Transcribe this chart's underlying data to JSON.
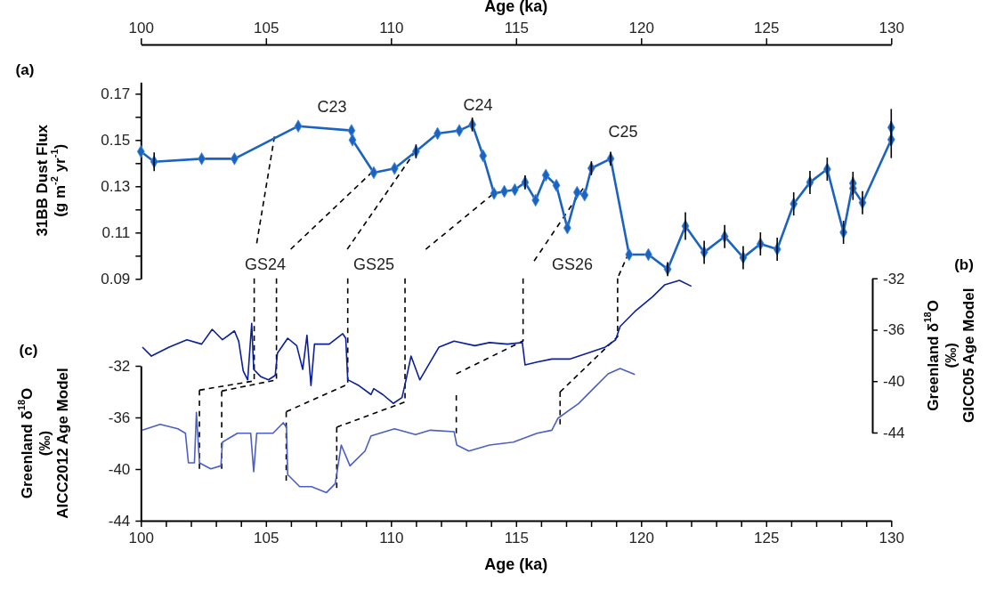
{
  "chart_data": [
    {
      "type": "line",
      "xlabel": "Age (ka)",
      "ylabel": "31BB Dust Flux\n(g m$^{-2}$ yr$^{-1}$)",
      "xlim": [
        100,
        130
      ],
      "xticks": [
        100,
        105,
        110,
        115,
        120,
        125,
        130
      ],
      "ylim": [
        0.09,
        0.175
      ],
      "yticks": [
        0.09,
        {
          "value": 0.1,
          "label": null
        },
        0.11,
        {
          "value": 0.12,
          "label": null
        },
        0.13,
        {
          "value": 0.14,
          "label": null
        },
        0.15,
        {
          "value": 0.16,
          "label": null
        },
        0.17
      ],
      "marker": "none",
      "line_style": "solid",
      "series": [
        {
          "color": "#1b63c1",
          "marker": "diamond",
          "x": [
            100,
            100.53,
            102.43,
            103.74,
            106.29,
            108.42,
            108.46,
            109.31,
            110.14,
            111.0,
            111.86,
            112.73,
            113.25,
            113.68,
            114.12,
            114.53,
            114.95,
            115.36,
            115.78,
            116.19,
            116.61,
            117.05,
            117.44,
            117.74,
            118.01,
            118.78,
            119.52,
            120.29,
            121.06,
            121.77,
            122.52,
            123.34,
            124.08,
            124.77,
            125.44,
            126.1,
            126.75,
            127.44,
            128.09,
            128.47,
            128.47,
            128.85,
            130,
            130
          ],
          "values": [
            0.145,
            0.1406,
            0.1419,
            0.1419,
            0.156,
            0.1541,
            0.15,
            0.1359,
            0.1377,
            0.1451,
            0.1528,
            0.1541,
            0.1567,
            0.1432,
            0.1269,
            0.1278,
            0.1285,
            0.1317,
            0.124,
            0.1348,
            0.1304,
            0.112,
            0.1274,
            0.1262,
            0.1378,
            0.1419,
            0.1005,
            0.1005,
            0.0942,
            0.1128,
            0.1015,
            0.1083,
            0.0992,
            0.1051,
            0.1028,
            0.1224,
            0.1317,
            0.1374,
            0.1101,
            0.1313,
            0.1291,
            0.1229,
            0.1502,
            0.1554
          ],
          "errors": [
            null,
            0.004,
            null,
            null,
            null,
            null,
            null,
            null,
            null,
            0.003,
            null,
            null,
            0.003,
            null,
            null,
            null,
            null,
            0.003,
            null,
            null,
            null,
            null,
            null,
            null,
            0.003,
            0.003,
            null,
            null,
            0.003,
            0.006,
            0.005,
            0.005,
            0.005,
            0.005,
            0.005,
            0.005,
            0.005,
            0.005,
            0.005,
            0.005,
            0.005,
            0.005,
            0.008,
            0.008
          ]
        },
        {
          "color": "#000000",
          "line_style": "dashed",
          "x": [
            105.34,
            104.63
          ],
          "values": [
            0.1515,
            0.1054
          ]
        },
        {
          "color": "#000000",
          "line_style": "dashed",
          "x": [
            109.25,
            105.99
          ],
          "values": [
            0.1362,
            0.1028
          ]
        },
        {
          "color": "#000000",
          "line_style": "dashed",
          "x": [
            110.97,
            108.25
          ],
          "values": [
            0.1451,
            0.1028
          ]
        },
        {
          "color": "#000000",
          "line_style": "dashed",
          "x": [
            114.06,
            111.39
          ],
          "values": [
            0.1265,
            0.1028
          ]
        },
        {
          "color": "#000000",
          "line_style": "dashed",
          "x": [
            117.68,
            115.72
          ],
          "values": [
            0.1291,
            0.0977
          ]
        },
        {
          "color": "#000000",
          "line_style": "dashed",
          "x": [
            119.49,
            119.1
          ],
          "values": [
            0.1009,
            0.0913
          ]
        }
      ],
      "annotations": [
        "C23",
        "C24",
        "C25",
        "GS24",
        "GS25",
        "GS26",
        "(a)"
      ]
    },
    {
      "type": "line",
      "xlabel": "Age (ka)",
      "ylabel": "Greenland δ$^{18}$O\n(‰)\nAICC2012 Age Model",
      "y2label": "Greenland δ$^{18}$O\n(‰)\nGICC05 Age Model",
      "xlim": [
        100,
        130
      ],
      "xticks": [
        100,
        {
          "value": 101,
          "label": null
        },
        {
          "value": 102,
          "label": null
        },
        {
          "value": 103,
          "label": null
        },
        {
          "value": 104,
          "label": null
        },
        105,
        {
          "value": 106,
          "label": null
        },
        {
          "value": 107,
          "label": null
        },
        {
          "value": 108,
          "label": null
        },
        {
          "value": 109,
          "label": null
        },
        110,
        {
          "value": 111,
          "label": null
        },
        {
          "value": 112,
          "label": null
        },
        {
          "value": 113,
          "label": null
        },
        {
          "value": 114,
          "label": null
        },
        115,
        {
          "value": 116,
          "label": null
        },
        {
          "value": 117,
          "label": null
        },
        {
          "value": 118,
          "label": null
        },
        {
          "value": 119,
          "label": null
        },
        120,
        {
          "value": 121,
          "label": null
        },
        {
          "value": 122,
          "label": null
        },
        {
          "value": 123,
          "label": null
        },
        {
          "value": 124,
          "label": null
        },
        125,
        {
          "value": 126,
          "label": null
        },
        {
          "value": 127,
          "label": null
        },
        {
          "value": 128,
          "label": null
        },
        {
          "value": 129,
          "label": null
        },
        130
      ],
      "ylim": [
        -44,
        -32
      ],
      "yticks": [
        -44,
        -40,
        -36,
        -32
      ],
      "y2lim": [
        -44,
        -32
      ],
      "y2ticks": [
        -44,
        -40,
        -36,
        -32
      ],
      "marker": "none",
      "line_style": "solid",
      "series": [
        {
          "color": "#0b1f9c",
          "axis": "y2",
          "x": [
            100.06,
            100.42,
            101.13,
            101.84,
            102.43,
            102.85,
            103.26,
            103.74,
            103.91,
            104.09,
            104.27,
            104.43,
            104.51,
            104.8,
            105.1,
            105.37,
            105.46,
            105.87,
            106.23,
            106.47,
            106.64,
            106.8,
            106.94,
            107.53,
            108.07,
            108.19,
            108.27,
            108.72,
            109.2,
            109.31,
            109.67,
            110.09,
            110.44,
            110.6,
            110.8,
            111.15,
            111.57,
            111.92,
            112.52,
            113.35,
            113.94,
            114.65,
            115.25,
            115.36,
            115.84,
            116.43,
            117.14,
            117.86,
            118.57,
            118.98,
            119.16,
            119.75,
            120.46,
            120.94,
            121.53,
            122.01
          ],
          "values": [
            -37.35,
            -38.05,
            -37.35,
            -36.78,
            -37.12,
            -35.97,
            -36.78,
            -36.09,
            -36.89,
            -39.2,
            -39.9,
            -35.5,
            -39.08,
            -39.66,
            -39.9,
            -39.55,
            -37.82,
            -36.66,
            -37.24,
            -39.08,
            -36.43,
            -40.35,
            -37.12,
            -37.12,
            -36.31,
            -36.66,
            -39.89,
            -40.35,
            -41.04,
            -40.58,
            -41.04,
            -41.73,
            -41.27,
            -39.9,
            -38.05,
            -39.9,
            -38.51,
            -37.35,
            -36.89,
            -37.24,
            -37.0,
            -37.12,
            -37.0,
            -38.74,
            -38.51,
            -38.28,
            -38.28,
            -37.82,
            -37.35,
            -36.78,
            -35.74,
            -34.58,
            -33.43,
            -32.51,
            -32.16,
            -32.62
          ]
        },
        {
          "color": "#4b5fc6",
          "x": [
            100.06,
            100.77,
            101.48,
            101.78,
            101.9,
            102.14,
            102.22,
            102.34,
            102.79,
            103.2,
            103.26,
            103.86,
            104.39,
            104.51,
            104.63,
            105.28,
            105.69,
            105.82,
            105.87,
            106.35,
            106.82,
            107.42,
            107.77,
            108.01,
            108.36,
            108.96,
            109.2,
            110.14,
            110.98,
            111.57,
            112.52,
            112.63,
            113.11,
            113.94,
            114.89,
            115.84,
            116.43,
            116.67,
            117.5,
            118.09,
            118.68,
            119.16,
            119.75
          ],
          "values": [
            -36.99,
            -36.53,
            -36.88,
            -37.22,
            -39.52,
            -39.52,
            -35.61,
            -39.52,
            -39.98,
            -39.75,
            -37.91,
            -37.22,
            -37.22,
            -40.21,
            -37.22,
            -37.22,
            -36.41,
            -36.76,
            -40.43,
            -41.36,
            -41.36,
            -41.82,
            -41.13,
            -38.14,
            -39.75,
            -38.6,
            -37.43,
            -36.88,
            -37.33,
            -36.99,
            -37.1,
            -38.14,
            -38.6,
            -38.14,
            -37.91,
            -37.22,
            -36.99,
            -36.07,
            -34.92,
            -33.77,
            -32.62,
            -32.21,
            -32.67
          ]
        },
        {
          "color": "#000000",
          "line_style": "dashed",
          "axis": "y2",
          "x": [
            104.53,
            104.53,
            102.34
          ],
          "values": [
            -32,
            -39.98,
            -40.7
          ]
        },
        {
          "color": "#000000",
          "line_style": "dashed",
          "axis": "y2",
          "x": [
            105.42,
            105.42,
            103.23
          ],
          "values": [
            -32,
            -39.9,
            -40.77
          ]
        },
        {
          "color": "#000000",
          "line_style": "dashed",
          "axis": "y2",
          "x": [
            108.27,
            108.27,
            105.81
          ],
          "values": [
            -32,
            -40.24,
            -42.38
          ]
        },
        {
          "color": "#000000",
          "line_style": "dashed",
          "axis": "y2",
          "x": [
            110.56,
            110.56,
            107.83
          ],
          "values": [
            -32,
            -41.62,
            -43.58
          ]
        },
        {
          "color": "#000000",
          "line_style": "dashed",
          "axis": "y2",
          "x": [
            115.28,
            115.28,
            112.61
          ],
          "values": [
            -32,
            -36.87,
            -39.43
          ]
        },
        {
          "color": "#000000",
          "line_style": "dashed",
          "axis": "y2",
          "x": [
            119.06,
            119.06,
            116.76
          ],
          "values": [
            -32,
            -36.54,
            -40.84
          ]
        },
        {
          "color": "#000000",
          "line_style": "dashed",
          "x": [
            102.34,
            102.34
          ],
          "values": [
            -33.88,
            -39.98
          ]
        },
        {
          "color": "#000000",
          "line_style": "dashed",
          "x": [
            103.23,
            103.23
          ],
          "values": [
            -33.97,
            -39.98
          ]
        },
        {
          "color": "#000000",
          "line_style": "dashed",
          "x": [
            105.81,
            105.81
          ],
          "values": [
            -35.57,
            -40.9
          ]
        },
        {
          "color": "#000000",
          "line_style": "dashed",
          "x": [
            107.83,
            107.83
          ],
          "values": [
            -36.76,
            -41.47
          ]
        },
        {
          "color": "#000000",
          "line_style": "dashed",
          "x": [
            112.61,
            112.61
          ],
          "values": [
            -34.28,
            -37.22
          ]
        },
        {
          "color": "#000000",
          "line_style": "dashed",
          "x": [
            116.76,
            116.76
          ],
          "values": [
            -34.0,
            -36.53
          ]
        }
      ],
      "annotations": [
        "(b)",
        "(c)"
      ]
    }
  ]
}
